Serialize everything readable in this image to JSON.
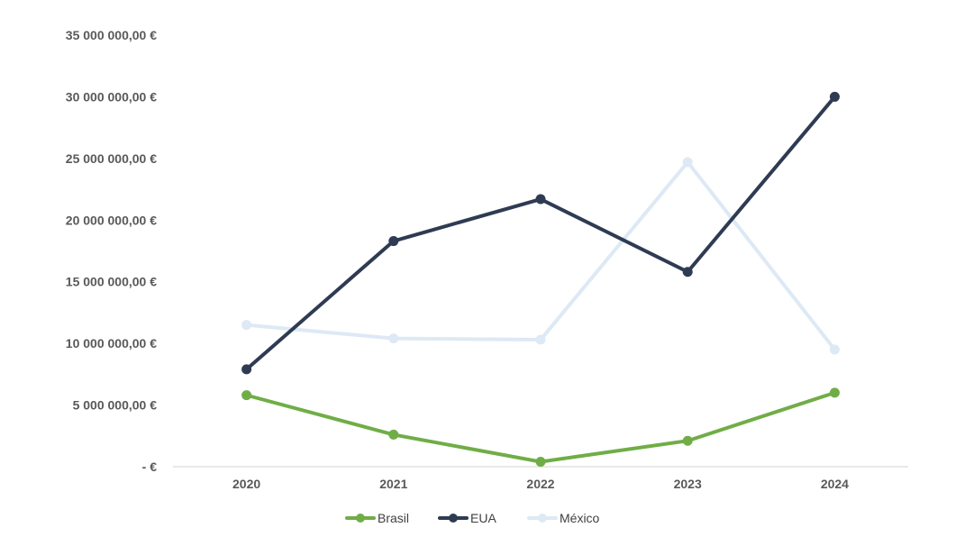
{
  "chart_data": {
    "type": "line",
    "title": "",
    "xlabel": "",
    "ylabel": "",
    "categories": [
      "2020",
      "2021",
      "2022",
      "2023",
      "2024"
    ],
    "ylim": [
      0,
      35000000
    ],
    "y_tick_values": [
      0,
      5000000,
      10000000,
      15000000,
      20000000,
      25000000,
      30000000,
      35000000
    ],
    "y_tick_labels": [
      "-  €",
      "5 000 000,00 €",
      "10 000 000,00 €",
      "15 000 000,00 €",
      "20 000 000,00 €",
      "25 000 000,00 €",
      "30 000 000,00 €",
      "35 000 000,00 €"
    ],
    "grid": false,
    "legend_position": "bottom",
    "series": [
      {
        "name": "Brasil",
        "color": "#70ad47",
        "values": [
          5800000,
          2600000,
          400000,
          2100000,
          6000000
        ]
      },
      {
        "name": "EUA",
        "color": "#2e3b52",
        "values": [
          7900000,
          18300000,
          21700000,
          15800000,
          30000000
        ]
      },
      {
        "name": "México",
        "color": "#dde9f5",
        "values": [
          11500000,
          10400000,
          10300000,
          24700000,
          9500000
        ]
      }
    ]
  }
}
